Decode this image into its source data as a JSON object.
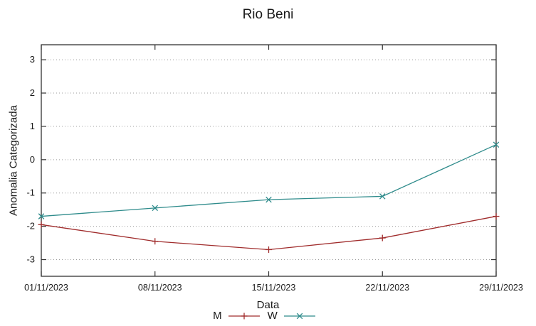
{
  "chart_data": {
    "type": "line",
    "title": "Rio Beni",
    "xlabel": "Data",
    "ylabel": "Anomalia Categorizada",
    "categories": [
      "01/11/2023",
      "08/11/2023",
      "15/11/2023",
      "22/11/2023",
      "29/11/2023"
    ],
    "series": [
      {
        "name": "M",
        "color": "#a02c2c",
        "marker": "plus",
        "values": [
          -1.95,
          -2.45,
          -2.7,
          -2.35,
          -1.7
        ]
      },
      {
        "name": "W",
        "color": "#2e8b8b",
        "marker": "x",
        "values": [
          -1.7,
          -1.45,
          -1.2,
          -1.1,
          0.45
        ]
      }
    ],
    "y_ticks": [
      -3,
      -2,
      -1,
      0,
      1,
      2,
      3
    ],
    "ylim": [
      -3.5,
      3.45
    ],
    "grid": "horizontal-dotted",
    "legend_position": "below",
    "frame_color": "#333333",
    "grid_color": "#9e9e9e",
    "text_color": "#1a1a1a"
  }
}
